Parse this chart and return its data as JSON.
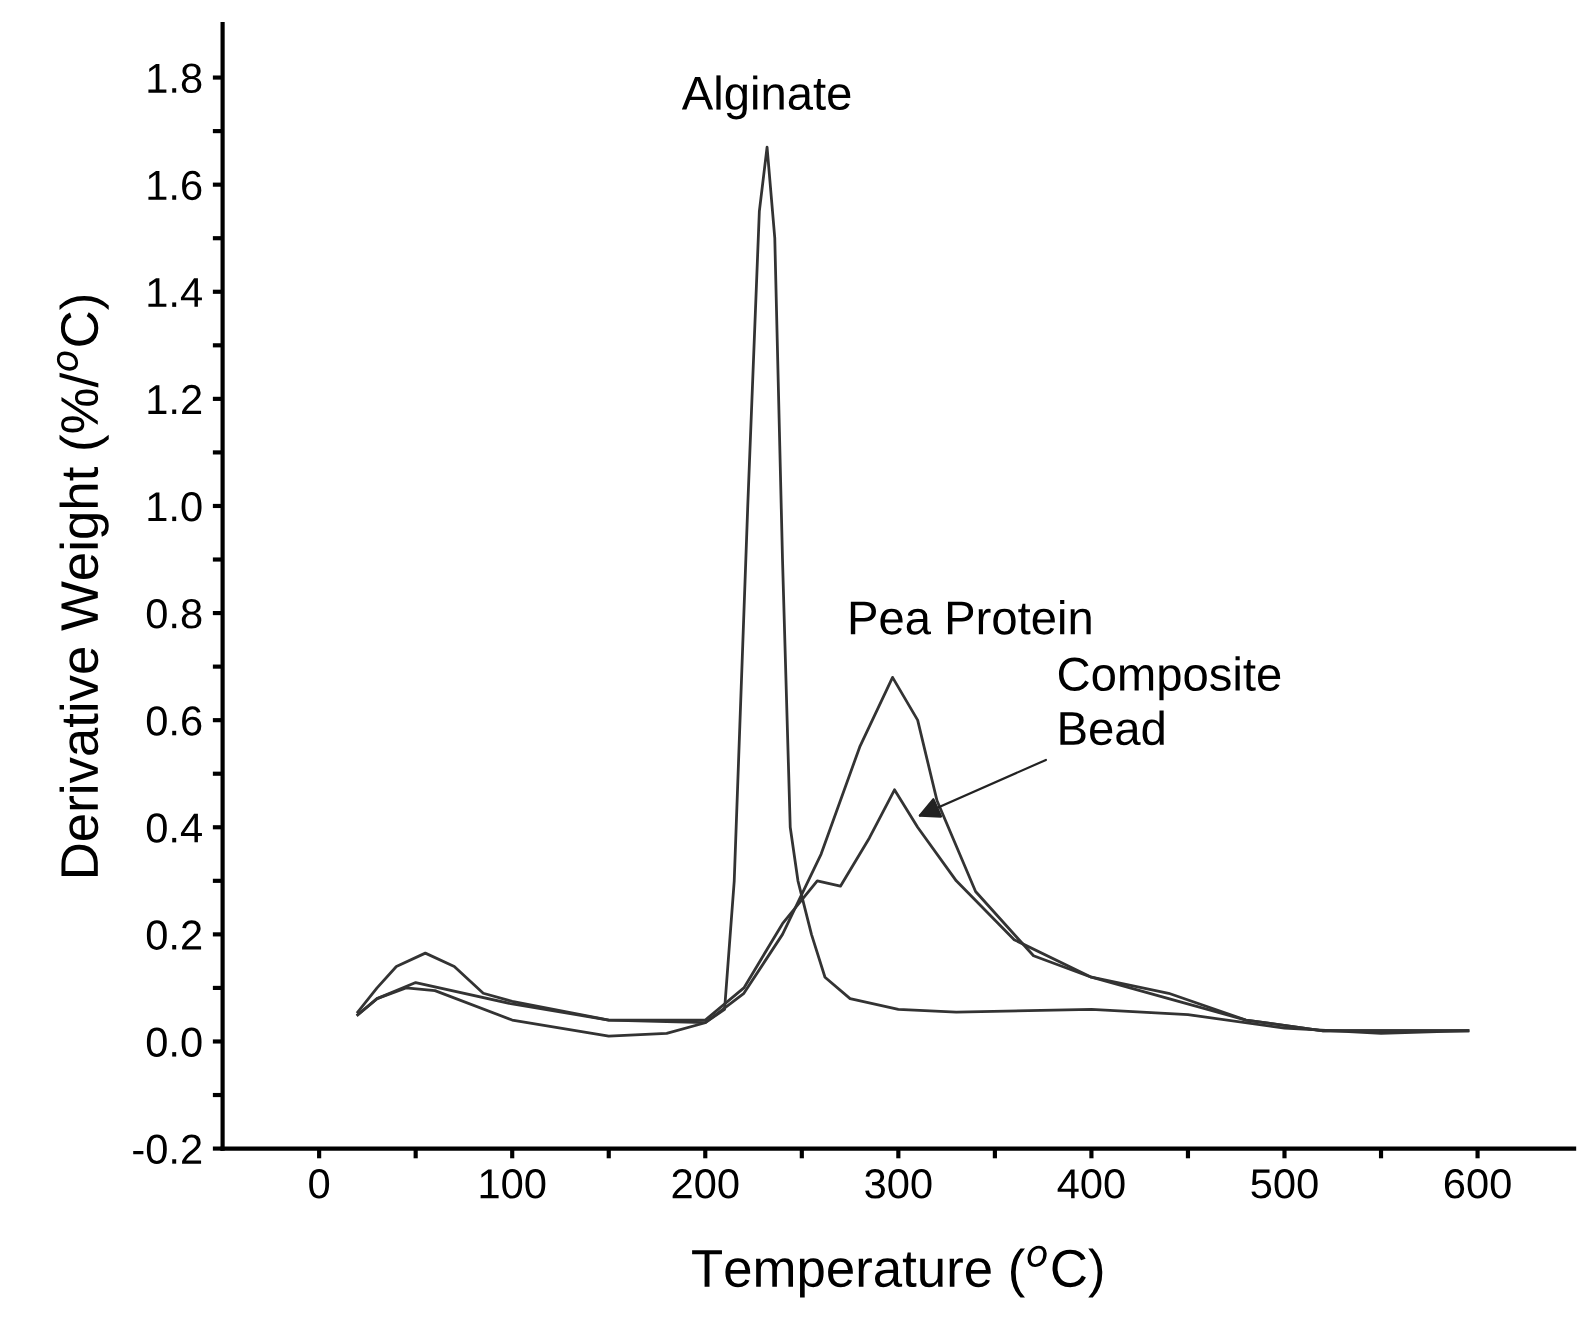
{
  "chart_data": {
    "type": "line",
    "xlabel": "Temperature ($^{o}$C)",
    "ylabel": "Derivative Weight (%/$^{o}$C)",
    "xlim": [
      -50,
      650
    ],
    "ylim": [
      -0.2,
      1.9
    ],
    "xticks": [
      0,
      {
        "value": 50,
        "label": null
      },
      100,
      {
        "value": 150,
        "label": null
      },
      200,
      {
        "value": 250,
        "label": null
      },
      300,
      {
        "value": 350,
        "label": null
      },
      400,
      {
        "value": 450,
        "label": null
      },
      500,
      {
        "value": 550,
        "label": null
      },
      600
    ],
    "yticks": [
      {
        "value": -0.2,
        "label": "-0.2"
      },
      {
        "value": -0.1,
        "label": null
      },
      {
        "value": 0.0,
        "label": "0.0"
      },
      {
        "value": 0.1,
        "label": null
      },
      {
        "value": 0.2,
        "label": "0.2"
      },
      {
        "value": 0.3,
        "label": null
      },
      {
        "value": 0.4,
        "label": "0.4"
      },
      {
        "value": 0.5,
        "label": null
      },
      {
        "value": 0.6,
        "label": "0.6"
      },
      {
        "value": 0.7,
        "label": null
      },
      {
        "value": 0.8,
        "label": "0.8"
      },
      {
        "value": 0.9,
        "label": null
      },
      {
        "value": 1.0,
        "label": "1.0"
      },
      {
        "value": 1.1,
        "label": null
      },
      {
        "value": 1.2,
        "label": "1.2"
      },
      {
        "value": 1.3,
        "label": null
      },
      {
        "value": 1.4,
        "label": "1.4"
      },
      {
        "value": 1.5,
        "label": null
      },
      {
        "value": 1.6,
        "label": "1.6"
      },
      {
        "value": 1.7,
        "label": null
      },
      {
        "value": 1.8,
        "label": "1.8"
      }
    ],
    "grid": false,
    "legend": false,
    "line_style": "solid",
    "marker": "none",
    "series": [
      {
        "color": "#333333",
        "x": [
          20,
          30,
          40,
          55,
          70,
          85,
          100,
          150,
          200,
          210,
          215,
          222,
          228,
          232,
          236,
          240,
          244,
          248,
          255,
          262,
          275,
          300,
          330,
          400,
          450,
          500,
          550,
          595
        ],
        "values": [
          0.055,
          0.1,
          0.14,
          0.165,
          0.14,
          0.09,
          0.075,
          0.04,
          0.035,
          0.06,
          0.3,
          1.0,
          1.55,
          1.67,
          1.5,
          0.9,
          0.4,
          0.3,
          0.2,
          0.12,
          0.08,
          0.06,
          0.055,
          0.06,
          0.05,
          0.025,
          0.015,
          0.02
        ]
      },
      {
        "color": "#333333",
        "x": [
          20,
          30,
          45,
          60,
          100,
          150,
          180,
          200,
          220,
          240,
          260,
          280,
          297,
          310,
          320,
          340,
          370,
          400,
          440,
          480,
          520,
          595
        ],
        "values": [
          0.05,
          0.08,
          0.1,
          0.095,
          0.04,
          0.01,
          0.015,
          0.035,
          0.09,
          0.2,
          0.35,
          0.55,
          0.68,
          0.6,
          0.45,
          0.28,
          0.16,
          0.12,
          0.09,
          0.04,
          0.02,
          0.02
        ]
      },
      {
        "color": "#333333",
        "x": [
          20,
          30,
          50,
          100,
          150,
          200,
          220,
          240,
          258,
          270,
          285,
          298,
          310,
          330,
          360,
          400,
          440,
          480,
          520,
          595
        ],
        "values": [
          0.05,
          0.08,
          0.11,
          0.07,
          0.04,
          0.04,
          0.1,
          0.22,
          0.3,
          0.29,
          0.38,
          0.47,
          0.4,
          0.3,
          0.19,
          0.12,
          0.08,
          0.04,
          0.02,
          0.02
        ]
      }
    ],
    "annotations": [
      {
        "text": "Alginate",
        "x": 232,
        "y": 1.67
      },
      {
        "text": "Pea Protein",
        "x": 297,
        "y": 0.68
      },
      {
        "text": "Composite\nBead",
        "x": 310,
        "y": 0.42
      }
    ]
  }
}
